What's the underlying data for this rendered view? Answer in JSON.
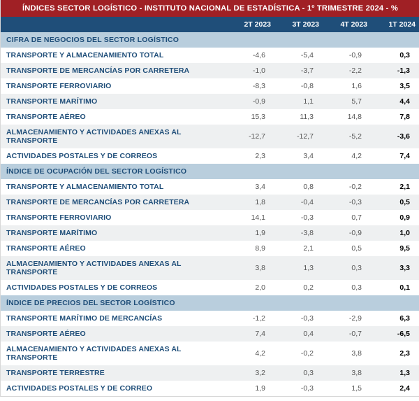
{
  "title": "ÍNDICES SECTOR LOGÍSTICO - INSTITUTO NACIONAL DE ESTADÍSTICA - 1º TRIMESTRE 2024 - %",
  "columns": [
    "2T 2023",
    "3T 2023",
    "4T 2023",
    "1T 2024"
  ],
  "colors": {
    "title_bg": "#a02025",
    "header_bg": "#1f4e79",
    "section_bg": "#b9cedd",
    "section_fg": "#1f4e79",
    "row_alt_bg": "#eef0f1",
    "label_fg": "#1f4e79"
  },
  "sections": [
    {
      "name": "CIFRA DE NEGOCIOS DEL SECTOR LOGÍSTICO",
      "rows": [
        {
          "label": "TRANSPORTE Y ALMACENAMIENTO TOTAL",
          "v": [
            "-4,6",
            "-5,4",
            "-0,9",
            "0,3"
          ]
        },
        {
          "label": "TRANSPORTE DE MERCANCÍAS POR CARRETERA",
          "v": [
            "-1,0",
            "-3,7",
            "-2,2",
            "-1,3"
          ]
        },
        {
          "label": "TRANSPORTE FERROVIARIO",
          "v": [
            "-8,3",
            "-0,8",
            "1,6",
            "3,5"
          ]
        },
        {
          "label": "TRANSPORTE MARÍTIMO",
          "v": [
            "-0,9",
            "1,1",
            "5,7",
            "4,4"
          ]
        },
        {
          "label": "TRANSPORTE AÉREO",
          "v": [
            "15,3",
            "11,3",
            "14,8",
            "7,8"
          ]
        },
        {
          "label": "ALMACENAMIENTO Y ACTIVIDADES ANEXAS AL TRANSPORTE",
          "v": [
            "-12,7",
            "-12,7",
            "-5,2",
            "-3,6"
          ]
        },
        {
          "label": "ACTIVIDADES POSTALES Y DE CORREOS",
          "v": [
            "2,3",
            "3,4",
            "4,2",
            "7,4"
          ]
        }
      ]
    },
    {
      "name": "ÍNDICE DE OCUPACIÓN DEL SECTOR LOGÍSTICO",
      "rows": [
        {
          "label": "TRANSPORTE Y ALMACENAMIENTO TOTAL",
          "v": [
            "3,4",
            "0,8",
            "-0,2",
            "2,1"
          ]
        },
        {
          "label": "TRANSPORTE DE MERCANCÍAS POR CARRETERA",
          "v": [
            "1,8",
            "-0,4",
            "-0,3",
            "0,5"
          ]
        },
        {
          "label": "TRANSPORTE FERROVIARIO",
          "v": [
            "14,1",
            "-0,3",
            "0,7",
            "0,9"
          ]
        },
        {
          "label": "TRANSPORTE MARÍTIMO",
          "v": [
            "1,9",
            "-3,8",
            "-0,9",
            "1,0"
          ]
        },
        {
          "label": "TRANSPORTE AÉREO",
          "v": [
            "8,9",
            "2,1",
            "0,5",
            "9,5"
          ]
        },
        {
          "label": "ALMACENAMIENTO Y ACTIVIDADES ANEXAS AL TRANSPORTE",
          "v": [
            "3,8",
            "1,3",
            "0,3",
            "3,3"
          ]
        },
        {
          "label": "ACTIVIDADES POSTALES Y DE CORREOS",
          "v": [
            "2,0",
            "0,2",
            "0,3",
            "0,1"
          ]
        }
      ]
    },
    {
      "name": "ÍNDICE DE PRECIOS DEL SECTOR LOGÍSTICO",
      "rows": [
        {
          "label": "TRANSPORTE MARÍTIMO DE MERCANCÍAS",
          "v": [
            "-1,2",
            "-0,3",
            "-2,9",
            "6,3"
          ]
        },
        {
          "label": "TRANSPORTE AÉREO",
          "v": [
            "7,4",
            "0,4",
            "-0,7",
            "-6,5"
          ]
        },
        {
          "label": "ALMACENAMIENTO Y ACTIVIDADES ANEXAS AL TRANSPORTE",
          "v": [
            "4,2",
            "-0,2",
            "3,8",
            "2,3"
          ]
        },
        {
          "label": "TRANSPORTE TERRESTRE",
          "v": [
            "3,2",
            "0,3",
            "3,8",
            "1,3"
          ]
        },
        {
          "label": "ACTIVIDADES POSTALES Y DE CORREO",
          "v": [
            "1,9",
            "-0,3",
            "1,5",
            "2,4"
          ]
        }
      ]
    }
  ]
}
